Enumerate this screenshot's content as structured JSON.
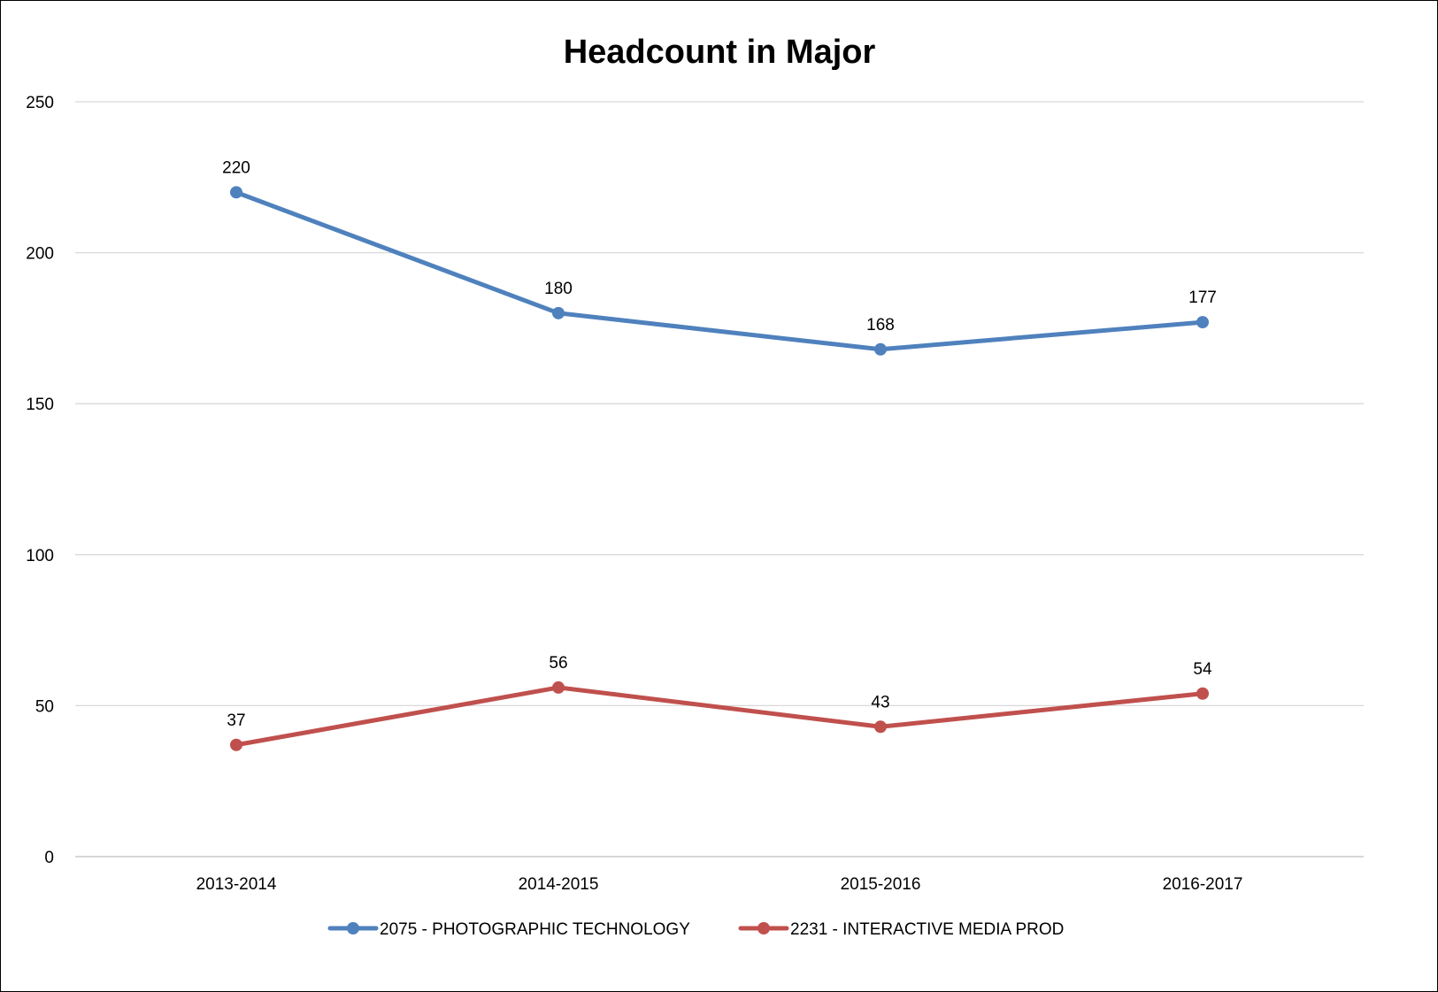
{
  "chart_data": {
    "type": "line",
    "title": "Headcount in Major",
    "xlabel": "",
    "ylabel": "",
    "categories": [
      "2013-2014",
      "2014-2015",
      "2015-2016",
      "2016-2017"
    ],
    "ylim": [
      0,
      250
    ],
    "yticks": [
      0,
      50,
      100,
      150,
      200,
      250
    ],
    "grid": true,
    "legend_position": "bottom",
    "series": [
      {
        "name": "2075 - PHOTOGRAPHIC TECHNOLOGY",
        "values": [
          220,
          180,
          168,
          177
        ],
        "color": "#4f81bd"
      },
      {
        "name": "2231 - INTERACTIVE MEDIA PROD",
        "values": [
          37,
          56,
          43,
          54
        ],
        "color": "#c0504d"
      }
    ]
  }
}
